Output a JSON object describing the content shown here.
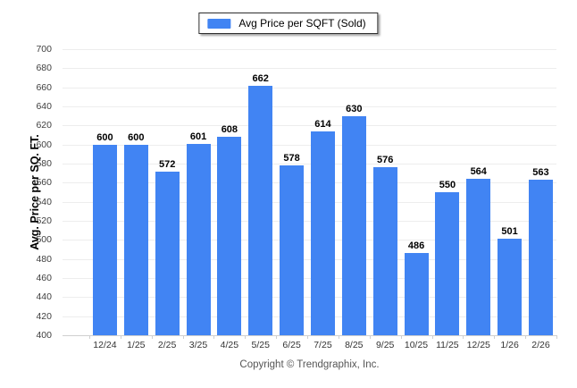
{
  "page": {
    "background": "#ffffff"
  },
  "legend": {
    "label": "Avg Price per SQFT (Sold)",
    "swatch_color": "#4184f3"
  },
  "footer": {
    "copyright": "Copyright © Trendgraphix, Inc."
  },
  "colors": {
    "bar": "#4184f3",
    "gridline": "#ededed",
    "baseline": "#cfcfcf",
    "value_label": "#000000",
    "axis_text": "#404040",
    "copyright_text": "#555555"
  },
  "chart_data": {
    "type": "bar",
    "title": "",
    "xlabel": "",
    "ylabel": "Avg. Price per SQ. FT.",
    "legend": [
      "Avg Price per SQFT (Sold)"
    ],
    "legend_position": "top-center",
    "grid": "horizontal",
    "value_labels": true,
    "bar_color": "#4184f3",
    "categories": [
      "12/24",
      "1/25",
      "2/25",
      "3/25",
      "4/25",
      "5/25",
      "6/25",
      "7/25",
      "8/25",
      "9/25",
      "10/25",
      "11/25",
      "12/25",
      "1/26",
      "2/26"
    ],
    "values": [
      600,
      600,
      572,
      601,
      608,
      662,
      578,
      614,
      630,
      576,
      486,
      550,
      564,
      501,
      563
    ],
    "ylim": [
      400,
      700
    ],
    "yticks": [
      400,
      420,
      440,
      460,
      480,
      500,
      520,
      540,
      560,
      580,
      600,
      620,
      640,
      660,
      680,
      700
    ]
  }
}
